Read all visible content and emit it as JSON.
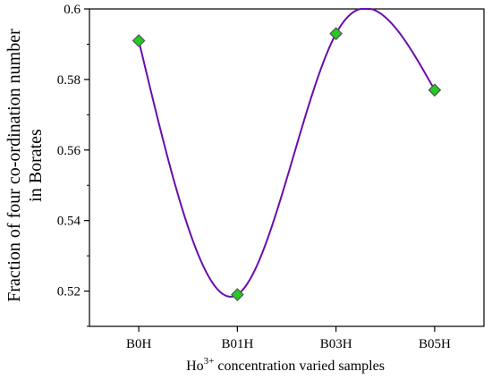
{
  "chart_data": {
    "type": "line",
    "categories": [
      "B0H",
      "B01H",
      "B03H",
      "B05H"
    ],
    "values": [
      0.591,
      0.519,
      0.593,
      0.577
    ],
    "xlabel": {
      "prefix": "Ho",
      "sup": "3+",
      "suffix": " concentration varied samples"
    },
    "ylabel": [
      "Fraction of four co-ordination number",
      "in Borates"
    ],
    "ylim": [
      0.51,
      0.6
    ],
    "yticks": [
      "0.52",
      "0.54",
      "0.56",
      "0.58",
      "0.6"
    ],
    "ytick_values": [
      0.52,
      0.54,
      0.56,
      0.58,
      0.6
    ],
    "grid": false,
    "line_color": "#6a0dad",
    "marker_color": "#22cc22",
    "marker_edge_color": "#555555",
    "marker_shape": "diamond"
  }
}
